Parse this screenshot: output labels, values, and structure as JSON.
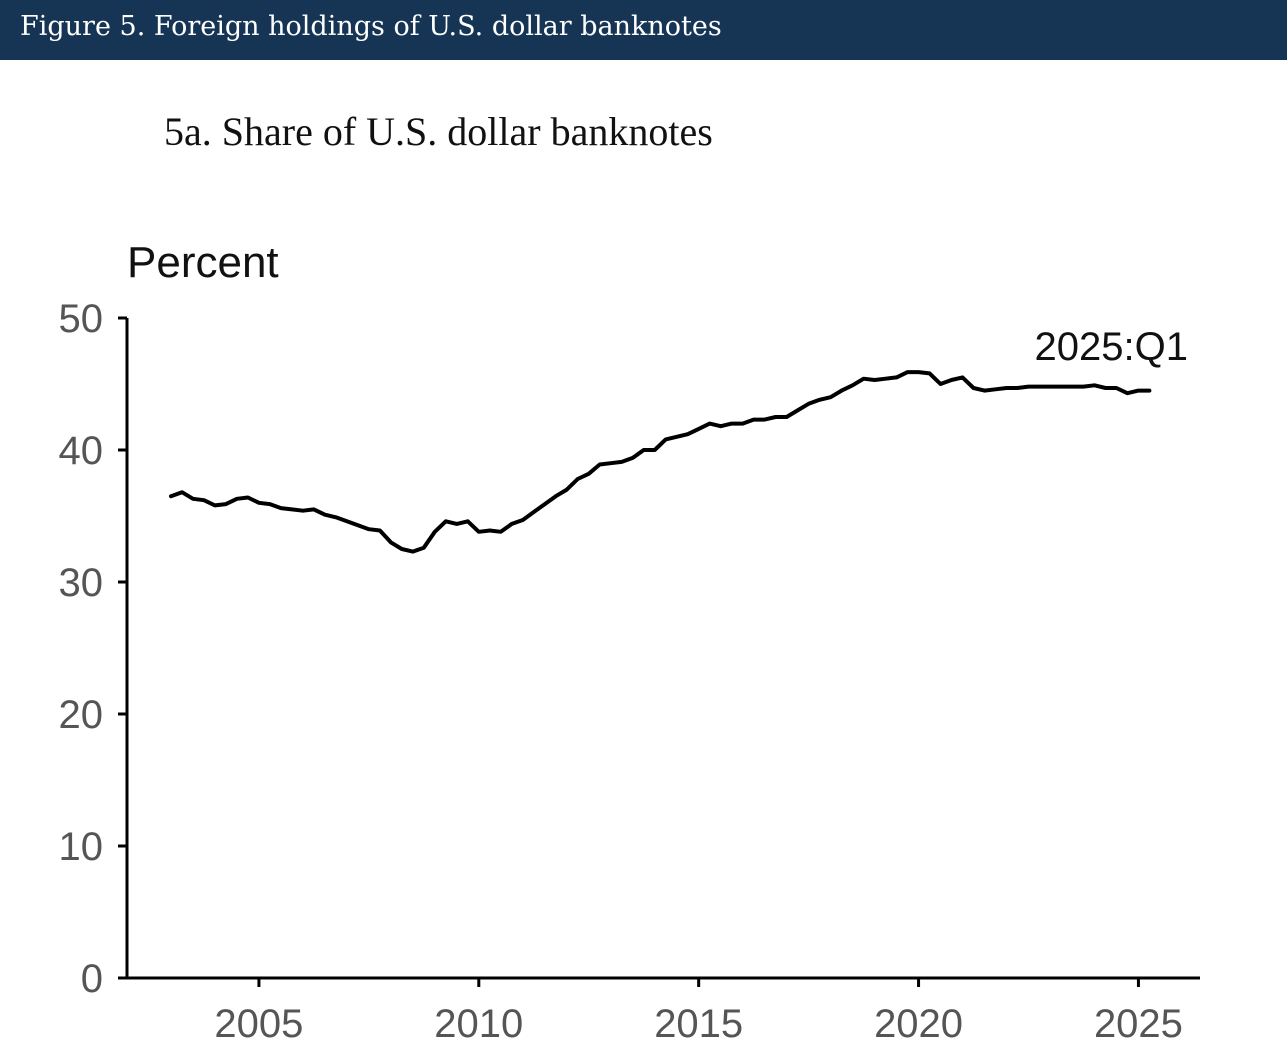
{
  "header": {
    "title": "Figure 5. Foreign holdings of U.S. dollar banknotes"
  },
  "chart_data": {
    "type": "line",
    "title": "5a. Share of U.S. dollar banknotes",
    "ylabel": "Percent",
    "xlabel": "",
    "ylim": [
      0,
      50
    ],
    "xlim": [
      2002,
      2026.4
    ],
    "yticks": [
      "0",
      "10",
      "20",
      "30",
      "40",
      "50"
    ],
    "xticks": [
      "2005",
      "2010",
      "2015",
      "2020",
      "2025"
    ],
    "grid": false,
    "annotation": "2025:Q1",
    "line_color": "#000000",
    "series": [
      {
        "x": [
          2003.0,
          2003.25,
          2003.5,
          2003.75,
          2004.0,
          2004.25,
          2004.5,
          2004.75,
          2005.0,
          2005.25,
          2005.5,
          2005.75,
          2006.0,
          2006.25,
          2006.5,
          2006.75,
          2007.0,
          2007.25,
          2007.5,
          2007.75,
          2008.0,
          2008.25,
          2008.5,
          2008.75,
          2009.0,
          2009.25,
          2009.5,
          2009.75,
          2010.0,
          2010.25,
          2010.5,
          2010.75,
          2011.0,
          2011.25,
          2011.5,
          2011.75,
          2012.0,
          2012.25,
          2012.5,
          2012.75,
          2013.0,
          2013.25,
          2013.5,
          2013.75,
          2014.0,
          2014.25,
          2014.5,
          2014.75,
          2015.0,
          2015.25,
          2015.5,
          2015.75,
          2016.0,
          2016.25,
          2016.5,
          2016.75,
          2017.0,
          2017.25,
          2017.5,
          2017.75,
          2018.0,
          2018.25,
          2018.5,
          2018.75,
          2019.0,
          2019.25,
          2019.5,
          2019.75,
          2020.0,
          2020.25,
          2020.5,
          2020.75,
          2021.0,
          2021.25,
          2021.5,
          2021.75,
          2022.0,
          2022.25,
          2022.5,
          2022.75,
          2023.0,
          2023.25,
          2023.5,
          2023.75,
          2024.0,
          2024.25,
          2024.5,
          2024.75,
          2025.0,
          2025.25
        ],
        "y": [
          36.5,
          36.8,
          36.3,
          36.2,
          35.8,
          35.9,
          36.3,
          36.4,
          36.0,
          35.9,
          35.6,
          35.5,
          35.4,
          35.5,
          35.1,
          34.9,
          34.6,
          34.3,
          34.0,
          33.9,
          33.0,
          32.5,
          32.3,
          32.6,
          33.8,
          34.6,
          34.4,
          34.6,
          33.8,
          33.9,
          33.8,
          34.4,
          34.7,
          35.3,
          35.9,
          36.5,
          37.0,
          37.8,
          38.2,
          38.9,
          39.0,
          39.1,
          39.4,
          40.0,
          40.0,
          40.8,
          41.0,
          41.2,
          41.6,
          42.0,
          41.8,
          42.0,
          42.0,
          42.3,
          42.3,
          42.5,
          42.5,
          43.0,
          43.5,
          43.8,
          44.0,
          44.5,
          44.9,
          45.4,
          45.3,
          45.4,
          45.5,
          45.9,
          45.9,
          45.8,
          45.0,
          45.3,
          45.5,
          44.7,
          44.5,
          44.6,
          44.7,
          44.7,
          44.8,
          44.8,
          44.8,
          44.8,
          44.8,
          44.8,
          44.9,
          44.7,
          44.7,
          44.3,
          44.5,
          44.5
        ]
      }
    ]
  }
}
